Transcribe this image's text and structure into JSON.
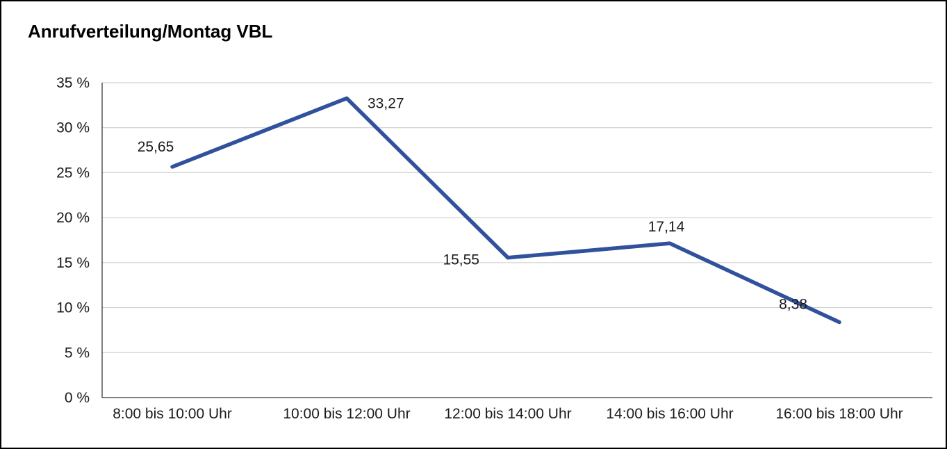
{
  "title": "Anrufverteilung/Montag VBL",
  "chart_data": {
    "type": "line",
    "title": "Anrufverteilung/Montag VBL",
    "categories": [
      "8:00 bis 10:00 Uhr",
      "10:00 bis 12:00 Uhr",
      "12:00 bis 14:00 Uhr",
      "14:00 bis 16:00 Uhr",
      "16:00 bis 18:00 Uhr"
    ],
    "values": [
      25.65,
      33.27,
      15.55,
      17.14,
      8.38
    ],
    "point_labels": [
      "25,65",
      "33,27",
      "15,55",
      "17,14",
      "8,38"
    ],
    "y_ticks": [
      "0 %",
      "5 %",
      "10 %",
      "15 %",
      "20 %",
      "25 %",
      "30 %",
      "35 %"
    ],
    "ylim": [
      0,
      35
    ],
    "y_step": 5,
    "xlabel": "",
    "ylabel": "",
    "grid": true,
    "legend": "none",
    "line_color": "#30519c",
    "grid_color": "#c9c9c9",
    "axis_color": "#000000",
    "text_color": "#1a1a1a"
  }
}
